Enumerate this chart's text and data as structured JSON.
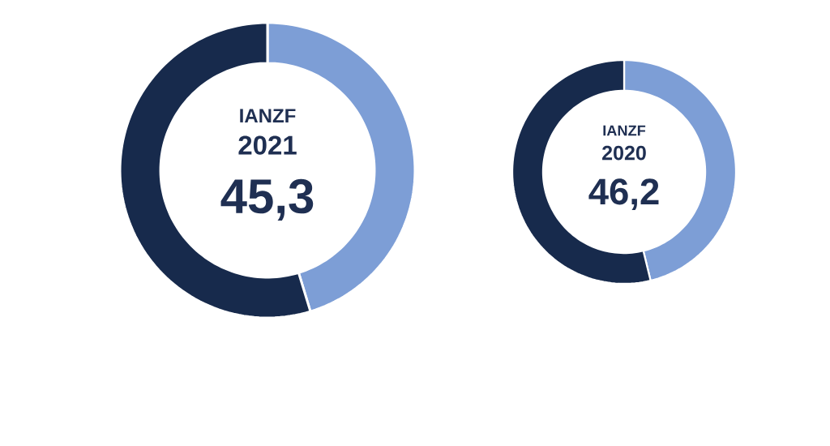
{
  "chart_data": [
    {
      "type": "donut",
      "title": "IANZF",
      "subtitle": "2021",
      "categories": [
        null,
        null
      ],
      "values": [
        45.3,
        54.7
      ],
      "colors": [
        "#7d9ed6",
        "#172a4c"
      ],
      "annotations": [
        "45,3"
      ]
    },
    {
      "type": "donut",
      "title": "IANZF",
      "subtitle": "2020",
      "categories": [
        null,
        null
      ],
      "values": [
        46.2,
        53.8
      ],
      "colors": [
        "#7d9ed6",
        "#172a4c"
      ],
      "annotations": [
        "46,2"
      ]
    }
  ]
}
